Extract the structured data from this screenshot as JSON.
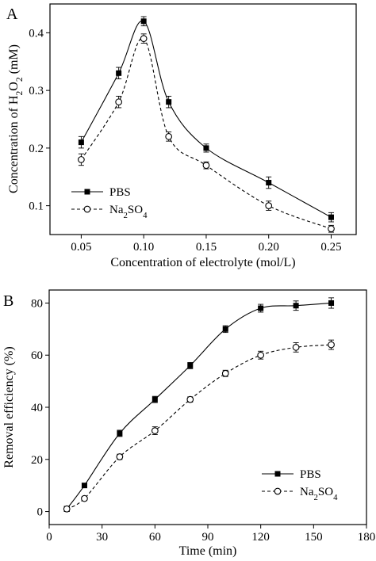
{
  "chart_data": [
    {
      "type": "line",
      "panel_label": "A",
      "xlabel": "Concentration of electrolyte (mol/L)",
      "ylabel_parts": [
        {
          "t": "Concentration of H",
          "sub": false
        },
        {
          "t": "2",
          "sub": true
        },
        {
          "t": "O",
          "sub": false
        },
        {
          "t": "2",
          "sub": true
        },
        {
          "t": " (mM)",
          "sub": false
        }
      ],
      "xlim": [
        0.025,
        0.27
      ],
      "ylim": [
        0.05,
        0.45
      ],
      "xticks": [
        0.05,
        0.1,
        0.15,
        0.2,
        0.25
      ],
      "xtick_labels": [
        "0.05",
        "0.10",
        "0.15",
        "0.20",
        "0.25"
      ],
      "yticks": [
        0.1,
        0.2,
        0.3,
        0.4
      ],
      "ytick_labels": [
        "0.1",
        "0.2",
        "0.3",
        "0.4"
      ],
      "grid": false,
      "legend_position": "lower-left",
      "x": [
        0.05,
        0.08,
        0.1,
        0.12,
        0.15,
        0.2,
        0.25
      ],
      "series": [
        {
          "name": "PBS",
          "name_parts": [
            {
              "t": "PBS",
              "sub": false
            }
          ],
          "marker": "filled-square",
          "line": "solid",
          "values": [
            0.21,
            0.33,
            0.42,
            0.28,
            0.2,
            0.14,
            0.08
          ],
          "errors": [
            0.01,
            0.01,
            0.008,
            0.01,
            0.007,
            0.01,
            0.008
          ]
        },
        {
          "name": "Na2SO4",
          "name_parts": [
            {
              "t": "Na",
              "sub": false
            },
            {
              "t": "2",
              "sub": true
            },
            {
              "t": "SO",
              "sub": false
            },
            {
              "t": "4",
              "sub": true
            }
          ],
          "marker": "open-circle",
          "line": "dashed",
          "values": [
            0.18,
            0.28,
            0.39,
            0.22,
            0.17,
            0.1,
            0.06
          ],
          "errors": [
            0.01,
            0.01,
            0.008,
            0.008,
            0.006,
            0.008,
            0.006
          ]
        }
      ]
    },
    {
      "type": "line",
      "panel_label": "B",
      "xlabel": "Time (min)",
      "ylabel_parts": [
        {
          "t": "Removal efficiency (%)",
          "sub": false
        }
      ],
      "xlim": [
        0,
        180
      ],
      "ylim": [
        -5,
        85
      ],
      "xticks": [
        0,
        30,
        60,
        90,
        120,
        150,
        180
      ],
      "xtick_labels": [
        "0",
        "30",
        "60",
        "90",
        "120",
        "150",
        "180"
      ],
      "yticks": [
        0,
        20,
        40,
        60,
        80
      ],
      "ytick_labels": [
        "0",
        "20",
        "40",
        "60",
        "80"
      ],
      "grid": false,
      "legend_position": "lower-right",
      "x": [
        10,
        20,
        40,
        60,
        80,
        100,
        120,
        140,
        160
      ],
      "series": [
        {
          "name": "PBS",
          "name_parts": [
            {
              "t": "PBS",
              "sub": false
            }
          ],
          "marker": "filled-square",
          "line": "solid",
          "values": [
            1,
            10,
            30,
            43,
            56,
            70,
            78,
            79,
            80
          ],
          "errors": [
            1,
            0.8,
            1.2,
            1.2,
            1.2,
            1.3,
            1.5,
            1.8,
            2
          ]
        },
        {
          "name": "Na2SO4",
          "name_parts": [
            {
              "t": "Na",
              "sub": false
            },
            {
              "t": "2",
              "sub": true
            },
            {
              "t": "SO",
              "sub": false
            },
            {
              "t": "4",
              "sub": true
            }
          ],
          "marker": "open-circle",
          "line": "dashed",
          "values": [
            1,
            5,
            21,
            31,
            43,
            53,
            60,
            63,
            64
          ],
          "errors": [
            1,
            0.8,
            1.0,
            1.5,
            1.0,
            1.2,
            1.5,
            1.8,
            1.8
          ]
        }
      ]
    }
  ]
}
